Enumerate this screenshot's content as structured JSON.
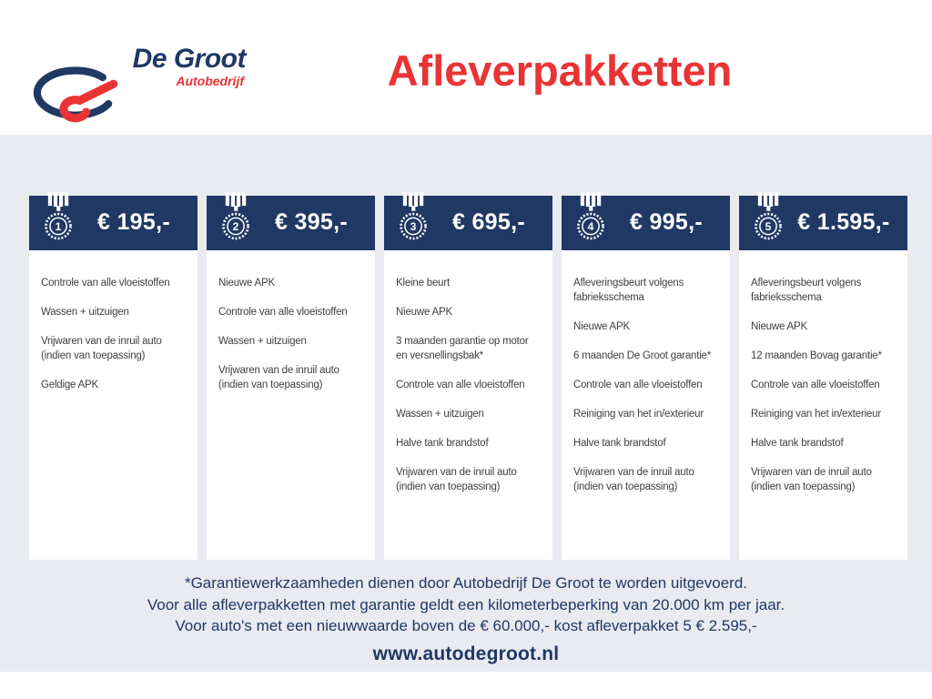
{
  "brand": {
    "name": "De Groot",
    "subtitle": "Autobedrijf"
  },
  "title": "Afleverpakketten",
  "packages": [
    {
      "number": "1",
      "price": "€ 195,-",
      "features": [
        "Controle van alle vloeistoffen",
        "Wassen + uitzuigen",
        "Vrijwaren van de inruil auto\n(indien van toepassing)",
        "Geldige APK"
      ]
    },
    {
      "number": "2",
      "price": "€ 395,-",
      "features": [
        "Nieuwe APK",
        "Controle van alle vloeistoffen",
        "Wassen + uitzuigen",
        "Vrijwaren van de inruil auto\n(indien van toepassing)"
      ]
    },
    {
      "number": "3",
      "price": "€ 695,-",
      "features": [
        "Kleine beurt",
        "Nieuwe APK",
        "3 maanden garantie op motor\nen versnellingsbak*",
        "Controle van alle vloeistoffen",
        "Wassen + uitzuigen",
        "Halve tank brandstof",
        "Vrijwaren van de inruil auto\n(indien van toepassing)"
      ]
    },
    {
      "number": "4",
      "price": "€ 995,-",
      "features": [
        "Afleveringsbeurt volgens\nfabrieksschema",
        "Nieuwe APK",
        "6 maanden De Groot garantie*",
        "Controle van alle vloeistoffen",
        "Reiniging van het in/exterieur",
        "Halve tank brandstof",
        "Vrijwaren van de inruil auto\n(indien van toepassing)"
      ]
    },
    {
      "number": "5",
      "price": "€ 1.595,-",
      "features": [
        "Afleveringsbeurt volgens\nfabrieksschema",
        "Nieuwe APK",
        "12 maanden Bovag garantie*",
        "Controle van alle vloeistoffen",
        "Reiniging van het in/exterieur",
        "Halve tank brandstof",
        "Vrijwaren van de inruil auto\n(indien van toepassing)"
      ]
    }
  ],
  "footnotes": [
    "*Garantiewerkzaamheden dienen door Autobedrijf De Groot te worden uitgevoerd.",
    "Voor alle afleverpakketten met garantie geldt een kilometerbeperking van 20.000 km per jaar.",
    "Voor auto's met een nieuwwaarde boven de € 60.000,- kost afleverpakket 5 € 2.595,-"
  ],
  "website": "www.autodegroot.nl",
  "colors": {
    "navy": "#1f3864",
    "red": "#e93334",
    "band": "#e9ebf1",
    "body_text": "#3f3f3f"
  }
}
